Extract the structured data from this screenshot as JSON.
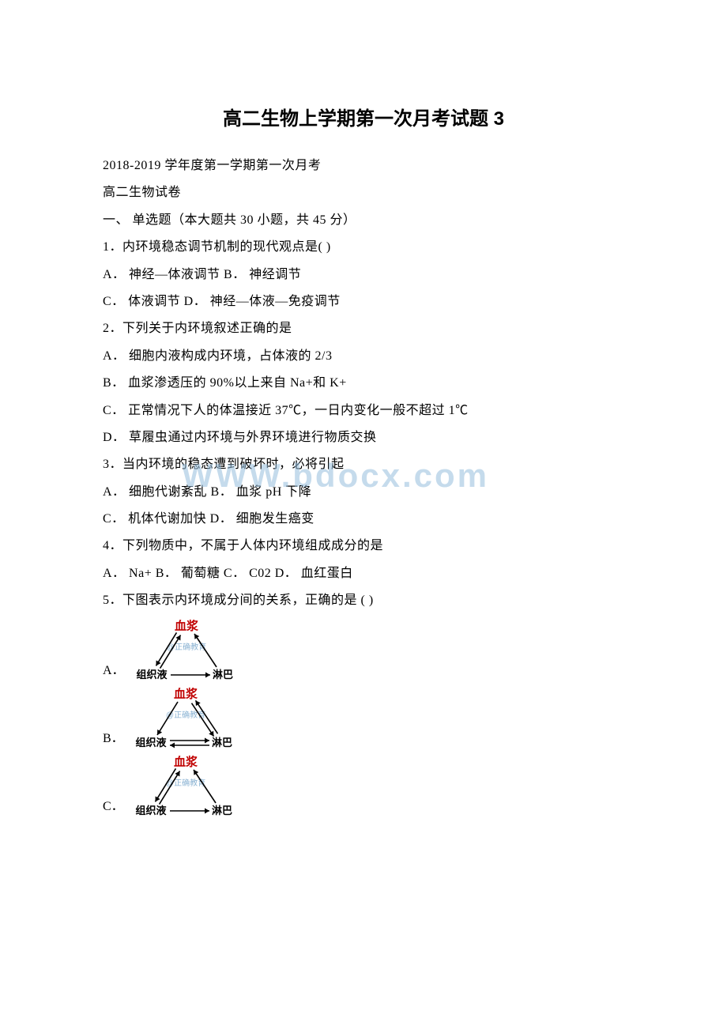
{
  "title": "高二生物上学期第一次月考试题 3",
  "header1": "2018-2019 学年度第一学期第一次月考",
  "header2": "高二生物试卷",
  "section_header": "一、 单选题（本大题共 30 小题，共 45 分）",
  "q1": {
    "stem": "1．内环境稳态调节机制的现代观点是( )",
    "row1": "A． 神经—体液调节 B． 神经调节",
    "row2": "C． 体液调节 D． 神经—体液—免疫调节"
  },
  "q2": {
    "stem": "2．下列关于内环境叙述正确的是",
    "a": "A． 细胞内液构成内环境，占体液的 2/3",
    "b": "B． 血浆渗透压的 90%以上来自 Na+和 K+",
    "c": "C． 正常情况下人的体温接近 37℃，一日内变化一般不超过 1℃",
    "d": "D． 草履虫通过内环境与外界环境进行物质交换"
  },
  "q3": {
    "stem": "3．当内环境的稳态遭到破坏时，必将引起",
    "row1": "A． 细胞代谢紊乱 B． 血浆 pH 下降",
    "row2": "C． 机体代谢加快 D． 细胞发生癌变"
  },
  "q4": {
    "stem": "4．下列物质中，不属于人体内环境组成成分的是",
    "row": "A． Na+ B． 葡萄糖 C． C02 D． 血红蛋白"
  },
  "q5": {
    "stem": "5．下图表示内环境成分间的关系，正确的是 ( )"
  },
  "diagram_labels": {
    "a": "A．",
    "b": "B．",
    "c": "C．"
  },
  "diagram_strings": {
    "top": "血浆",
    "watermark": "@正确教育",
    "bottom_left": "组织液",
    "bottom_right": "淋巴"
  },
  "watermark_text": "WWW.bdocx.com",
  "colors": {
    "text": "#000000",
    "background": "#ffffff",
    "watermark": "rgba(150, 190, 220, 0.55)",
    "diagram_red": "#c00000",
    "diagram_black": "#000000",
    "diagram_wm": "rgba(110, 160, 200, 0.8)"
  },
  "diagrams": {
    "A": {
      "top": "血浆",
      "wm": "@正确教育",
      "left": "组织液",
      "right": "淋巴",
      "arrows": {
        "top_left_down": true,
        "top_left_up": true,
        "top_right_down": false,
        "top_right_up": true,
        "bottom_lr": true,
        "bottom_rl": false
      },
      "colors": {
        "top": "#c00000",
        "left": "#000000",
        "right": "#000000",
        "wm": "rgba(110, 160, 200, 0.8)",
        "arrow": "#000000"
      }
    },
    "B": {
      "top": "血浆",
      "wm": "@正确教育",
      "left": "组织液",
      "right": "淋巴",
      "arrows": {
        "top_left_down": true,
        "top_left_up": false,
        "top_right_down": true,
        "top_right_up": true,
        "bottom_lr": true,
        "bottom_rl": true
      },
      "colors": {
        "top": "#c00000",
        "left": "#000000",
        "right": "#000000",
        "wm": "rgba(110, 160, 200, 0.8)",
        "arrow": "#000000"
      }
    },
    "C": {
      "top": "血浆",
      "wm": "@正确教育",
      "left": "组织液",
      "right": "淋巴",
      "arrows": {
        "top_left_down": true,
        "top_left_up": true,
        "top_right_down": false,
        "top_right_up": true,
        "bottom_lr": true,
        "bottom_rl": false
      },
      "colors": {
        "top": "#c00000",
        "left": "#000000",
        "right": "#000000",
        "wm": "rgba(110, 160, 200, 0.8)",
        "arrow": "#000000"
      }
    }
  }
}
